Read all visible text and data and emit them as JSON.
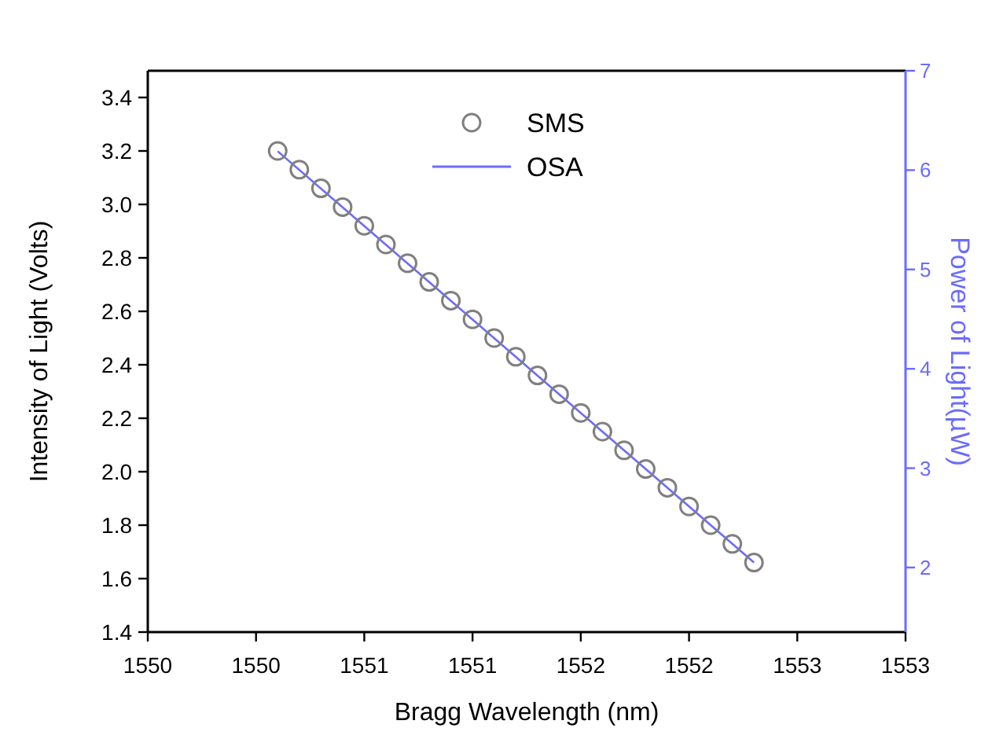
{
  "chart_data": {
    "type": "scatter",
    "xlabel": "Bragg Wavelength (nm)",
    "ylabel": "Intensity of Light (Volts)",
    "y2label": "Power of Light(µW)",
    "xlim": [
      1550,
      1553.5
    ],
    "xticks": [
      {
        "value": 1550,
        "label": "1550"
      },
      {
        "value": 1550.5,
        "label": "1550"
      },
      {
        "value": 1551,
        "label": "1551"
      },
      {
        "value": 1551.5,
        "label": "1551"
      },
      {
        "value": 1552,
        "label": "1552"
      },
      {
        "value": 1552.5,
        "label": "1552"
      },
      {
        "value": 1553,
        "label": "1553"
      },
      {
        "value": 1553.5,
        "label": "1553"
      }
    ],
    "ylim": [
      1.4,
      3.5
    ],
    "yticks": [
      1.4,
      1.6,
      1.8,
      {
        "value": 2,
        "label": "2.0"
      },
      2.2,
      2.4,
      2.6,
      2.8,
      {
        "value": 3,
        "label": "3.0"
      },
      3.2,
      3.4
    ],
    "y2lim": [
      1.35,
      7
    ],
    "y2ticks": [
      2,
      3,
      4,
      5,
      6,
      7
    ],
    "legend": "top",
    "grid": false,
    "series": [
      {
        "name": "SMS",
        "marker": "circle",
        "color": "#808080",
        "x": [
          1550.6,
          1550.7,
          1550.8,
          1550.9,
          1551,
          1551.1,
          1551.2,
          1551.3,
          1551.4,
          1551.5,
          1551.6,
          1551.7,
          1551.8,
          1551.9,
          1552,
          1552.1,
          1552.2,
          1552.3,
          1552.4,
          1552.5,
          1552.6,
          1552.7,
          1552.8
        ],
        "values": [
          3.2,
          3.13,
          3.06,
          2.99,
          2.92,
          2.85,
          2.78,
          2.71,
          2.64,
          2.57,
          2.5,
          2.43,
          2.36,
          2.29,
          2.22,
          2.15,
          2.08,
          2.01,
          1.94,
          1.87,
          1.8,
          1.73,
          1.66
        ]
      },
      {
        "name": "OSA",
        "type": "line",
        "marker": "none",
        "line_style": "solid",
        "axis": "y2",
        "color": "#6b6bff",
        "x": [
          1550.6,
          1552.8
        ],
        "values": [
          6.19,
          2.05
        ]
      }
    ]
  }
}
